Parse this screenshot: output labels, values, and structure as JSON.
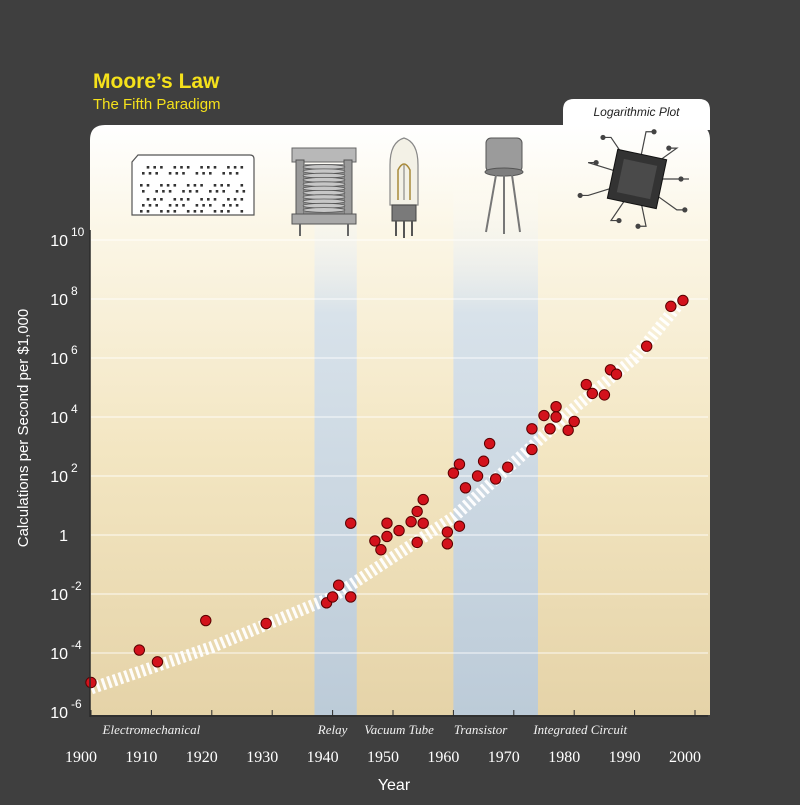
{
  "header": {
    "title": "Moore’s Law",
    "subtitle": "The Fifth Paradigm",
    "scale_tab": "Logarithmic Plot"
  },
  "colors": {
    "background": "#3f3f3f",
    "title": "#f5e11b",
    "band": "#b7ccdc",
    "point": "#d3121c",
    "trend": "#ffffff"
  },
  "icons": [
    "punch-card-icon",
    "relay-icon",
    "vacuum-tube-icon",
    "transistor-icon",
    "integrated-circuit-icon"
  ],
  "chart_data": {
    "type": "scatter",
    "title": "Moore’s Law",
    "subtitle": "The Fifth Paradigm",
    "xlabel": "Year",
    "ylabel": "Calculations per Second per $1,000",
    "xlim": [
      1900,
      2000
    ],
    "ylim_log10": [
      -6,
      10
    ],
    "y_scale": "log",
    "grid": true,
    "x_ticks": [
      "1900",
      "1910",
      "1920",
      "1930",
      "1940",
      "1950",
      "1960",
      "1970",
      "1980",
      "1990",
      "2000"
    ],
    "y_ticks": [
      {
        "base": "10",
        "exp": "-6"
      },
      {
        "base": "10",
        "exp": "-4"
      },
      {
        "base": "10",
        "exp": "-2"
      },
      {
        "base": "1",
        "exp": ""
      },
      {
        "base": "10",
        "exp": "2"
      },
      {
        "base": "10",
        "exp": "4"
      },
      {
        "base": "10",
        "exp": "6"
      },
      {
        "base": "10",
        "exp": "8"
      },
      {
        "base": "10",
        "exp": "10"
      }
    ],
    "paradigms": [
      {
        "name": "Electromechanical",
        "label_year": 1910
      },
      {
        "name": "Relay",
        "label_year": 1940,
        "band": [
          1937,
          1944
        ]
      },
      {
        "name": "Vacuum Tube",
        "label_year": 1951
      },
      {
        "name": "Transistor",
        "label_year": 1964.5,
        "band": [
          1960,
          1974
        ]
      },
      {
        "name": "Integrated Circuit",
        "label_year": 1981
      }
    ],
    "trend": [
      {
        "year": 1900,
        "log10": -5.2
      },
      {
        "year": 1920,
        "log10": -3.8
      },
      {
        "year": 1940,
        "log10": -2.1
      },
      {
        "year": 1960,
        "log10": 0.6
      },
      {
        "year": 1980,
        "log10": 4.3
      },
      {
        "year": 1990,
        "log10": 6.0
      },
      {
        "year": 1998,
        "log10": 8.0
      }
    ],
    "series": [
      {
        "points": [
          {
            "year": 1900,
            "log10": -5.0
          },
          {
            "year": 1908,
            "log10": -3.9
          },
          {
            "year": 1911,
            "log10": -4.3
          },
          {
            "year": 1919,
            "log10": -2.9
          },
          {
            "year": 1929,
            "log10": -3.0
          },
          {
            "year": 1939,
            "log10": -2.3
          },
          {
            "year": 1940,
            "log10": -2.1
          },
          {
            "year": 1941,
            "log10": -1.7
          },
          {
            "year": 1943,
            "log10": -2.1
          },
          {
            "year": 1943,
            "log10": 0.4
          },
          {
            "year": 1947,
            "log10": -0.2
          },
          {
            "year": 1948,
            "log10": -0.5
          },
          {
            "year": 1949,
            "log10": 0.4
          },
          {
            "year": 1949,
            "log10": -0.05
          },
          {
            "year": 1951,
            "log10": 0.15
          },
          {
            "year": 1953,
            "log10": 0.45
          },
          {
            "year": 1954,
            "log10": 0.8
          },
          {
            "year": 1954,
            "log10": -0.25
          },
          {
            "year": 1955,
            "log10": 1.2
          },
          {
            "year": 1955,
            "log10": 0.4
          },
          {
            "year": 1959,
            "log10": 0.1
          },
          {
            "year": 1959,
            "log10": -0.3
          },
          {
            "year": 1960,
            "log10": 2.1
          },
          {
            "year": 1961,
            "log10": 0.3
          },
          {
            "year": 1961,
            "log10": 2.4
          },
          {
            "year": 1962,
            "log10": 1.6
          },
          {
            "year": 1964,
            "log10": 2.0
          },
          {
            "year": 1965,
            "log10": 2.5
          },
          {
            "year": 1966,
            "log10": 3.1
          },
          {
            "year": 1967,
            "log10": 1.9
          },
          {
            "year": 1969,
            "log10": 2.3
          },
          {
            "year": 1973,
            "log10": 3.6
          },
          {
            "year": 1973,
            "log10": 2.9
          },
          {
            "year": 1975,
            "log10": 4.05
          },
          {
            "year": 1976,
            "log10": 3.6
          },
          {
            "year": 1977,
            "log10": 4.35
          },
          {
            "year": 1977,
            "log10": 4.0
          },
          {
            "year": 1979,
            "log10": 3.55
          },
          {
            "year": 1980,
            "log10": 3.85
          },
          {
            "year": 1982,
            "log10": 5.1
          },
          {
            "year": 1983,
            "log10": 4.8
          },
          {
            "year": 1985,
            "log10": 4.75
          },
          {
            "year": 1986,
            "log10": 5.6
          },
          {
            "year": 1987,
            "log10": 5.45
          },
          {
            "year": 1992,
            "log10": 6.4
          },
          {
            "year": 1996,
            "log10": 7.75
          },
          {
            "year": 1998,
            "log10": 7.95
          }
        ]
      }
    ]
  }
}
